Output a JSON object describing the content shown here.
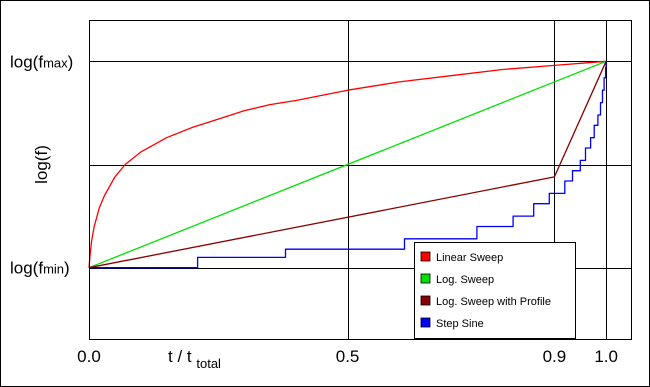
{
  "chart_data": {
    "type": "line",
    "title": "",
    "xlabel": "t / t",
    "xlabel_sub": "total",
    "ylabel": "log(f)",
    "xlim": [
      0,
      1.05
    ],
    "ylim": [
      -0.35,
      1.2
    ],
    "grid": true,
    "legend_position": "bottom-right",
    "x_ticks": [
      {
        "value": 0.0,
        "label": "0.0"
      },
      {
        "value": 0.5,
        "label": "0.5"
      },
      {
        "value": 0.9,
        "label": "0.9"
      },
      {
        "value": 1.0,
        "label": "1.0"
      }
    ],
    "y_ticks": [
      {
        "value": 0,
        "label_main": "log(f",
        "label_sub": "min",
        "label_end": ")"
      },
      {
        "value": 1,
        "label_main": "log(f",
        "label_sub": "max",
        "label_end": ")"
      }
    ],
    "gridlines": {
      "x": [
        0.5,
        0.9,
        1.0
      ],
      "y": [
        0,
        0.5,
        1
      ]
    },
    "series": [
      {
        "name": "Linear Sweep",
        "color": "#ff0000",
        "points": [
          [
            0,
            0
          ],
          [
            0.002,
            0.06
          ],
          [
            0.005,
            0.13
          ],
          [
            0.01,
            0.2
          ],
          [
            0.02,
            0.29
          ],
          [
            0.03,
            0.35
          ],
          [
            0.05,
            0.44
          ],
          [
            0.07,
            0.5
          ],
          [
            0.1,
            0.56
          ],
          [
            0.15,
            0.63
          ],
          [
            0.2,
            0.68
          ],
          [
            0.25,
            0.72
          ],
          [
            0.3,
            0.76
          ],
          [
            0.35,
            0.79
          ],
          [
            0.4,
            0.81
          ],
          [
            0.5,
            0.86
          ],
          [
            0.6,
            0.9
          ],
          [
            0.7,
            0.93
          ],
          [
            0.8,
            0.96
          ],
          [
            0.9,
            0.98
          ],
          [
            1.0,
            1.0
          ]
        ]
      },
      {
        "name": "Log. Sweep",
        "color": "#00e000",
        "points": [
          [
            0,
            0
          ],
          [
            1.0,
            1.0
          ]
        ]
      },
      {
        "name": "Log. Sweep with Profile",
        "color": "#880000",
        "points": [
          [
            0,
            0
          ],
          [
            0.9,
            0.44
          ],
          [
            1.0,
            1.0
          ]
        ]
      },
      {
        "name": "Step Sine",
        "color": "#0000ff",
        "points": [
          [
            0,
            0
          ],
          [
            0.21,
            0
          ],
          [
            0.21,
            0.05
          ],
          [
            0.38,
            0.05
          ],
          [
            0.38,
            0.09
          ],
          [
            0.61,
            0.09
          ],
          [
            0.61,
            0.14
          ],
          [
            0.75,
            0.14
          ],
          [
            0.75,
            0.2
          ],
          [
            0.82,
            0.2
          ],
          [
            0.82,
            0.25
          ],
          [
            0.86,
            0.25
          ],
          [
            0.86,
            0.31
          ],
          [
            0.89,
            0.31
          ],
          [
            0.89,
            0.36
          ],
          [
            0.92,
            0.36
          ],
          [
            0.92,
            0.42
          ],
          [
            0.935,
            0.42
          ],
          [
            0.935,
            0.47
          ],
          [
            0.95,
            0.47
          ],
          [
            0.95,
            0.52
          ],
          [
            0.96,
            0.52
          ],
          [
            0.96,
            0.58
          ],
          [
            0.97,
            0.58
          ],
          [
            0.97,
            0.63
          ],
          [
            0.977,
            0.63
          ],
          [
            0.977,
            0.69
          ],
          [
            0.984,
            0.69
          ],
          [
            0.984,
            0.74
          ],
          [
            0.989,
            0.74
          ],
          [
            0.989,
            0.8
          ],
          [
            0.993,
            0.8
          ],
          [
            0.993,
            0.86
          ],
          [
            0.996,
            0.86
          ],
          [
            0.996,
            0.92
          ],
          [
            0.999,
            0.92
          ],
          [
            0.999,
            0.97
          ],
          [
            1.0,
            0.97
          ],
          [
            1.0,
            1.0
          ]
        ]
      }
    ]
  }
}
